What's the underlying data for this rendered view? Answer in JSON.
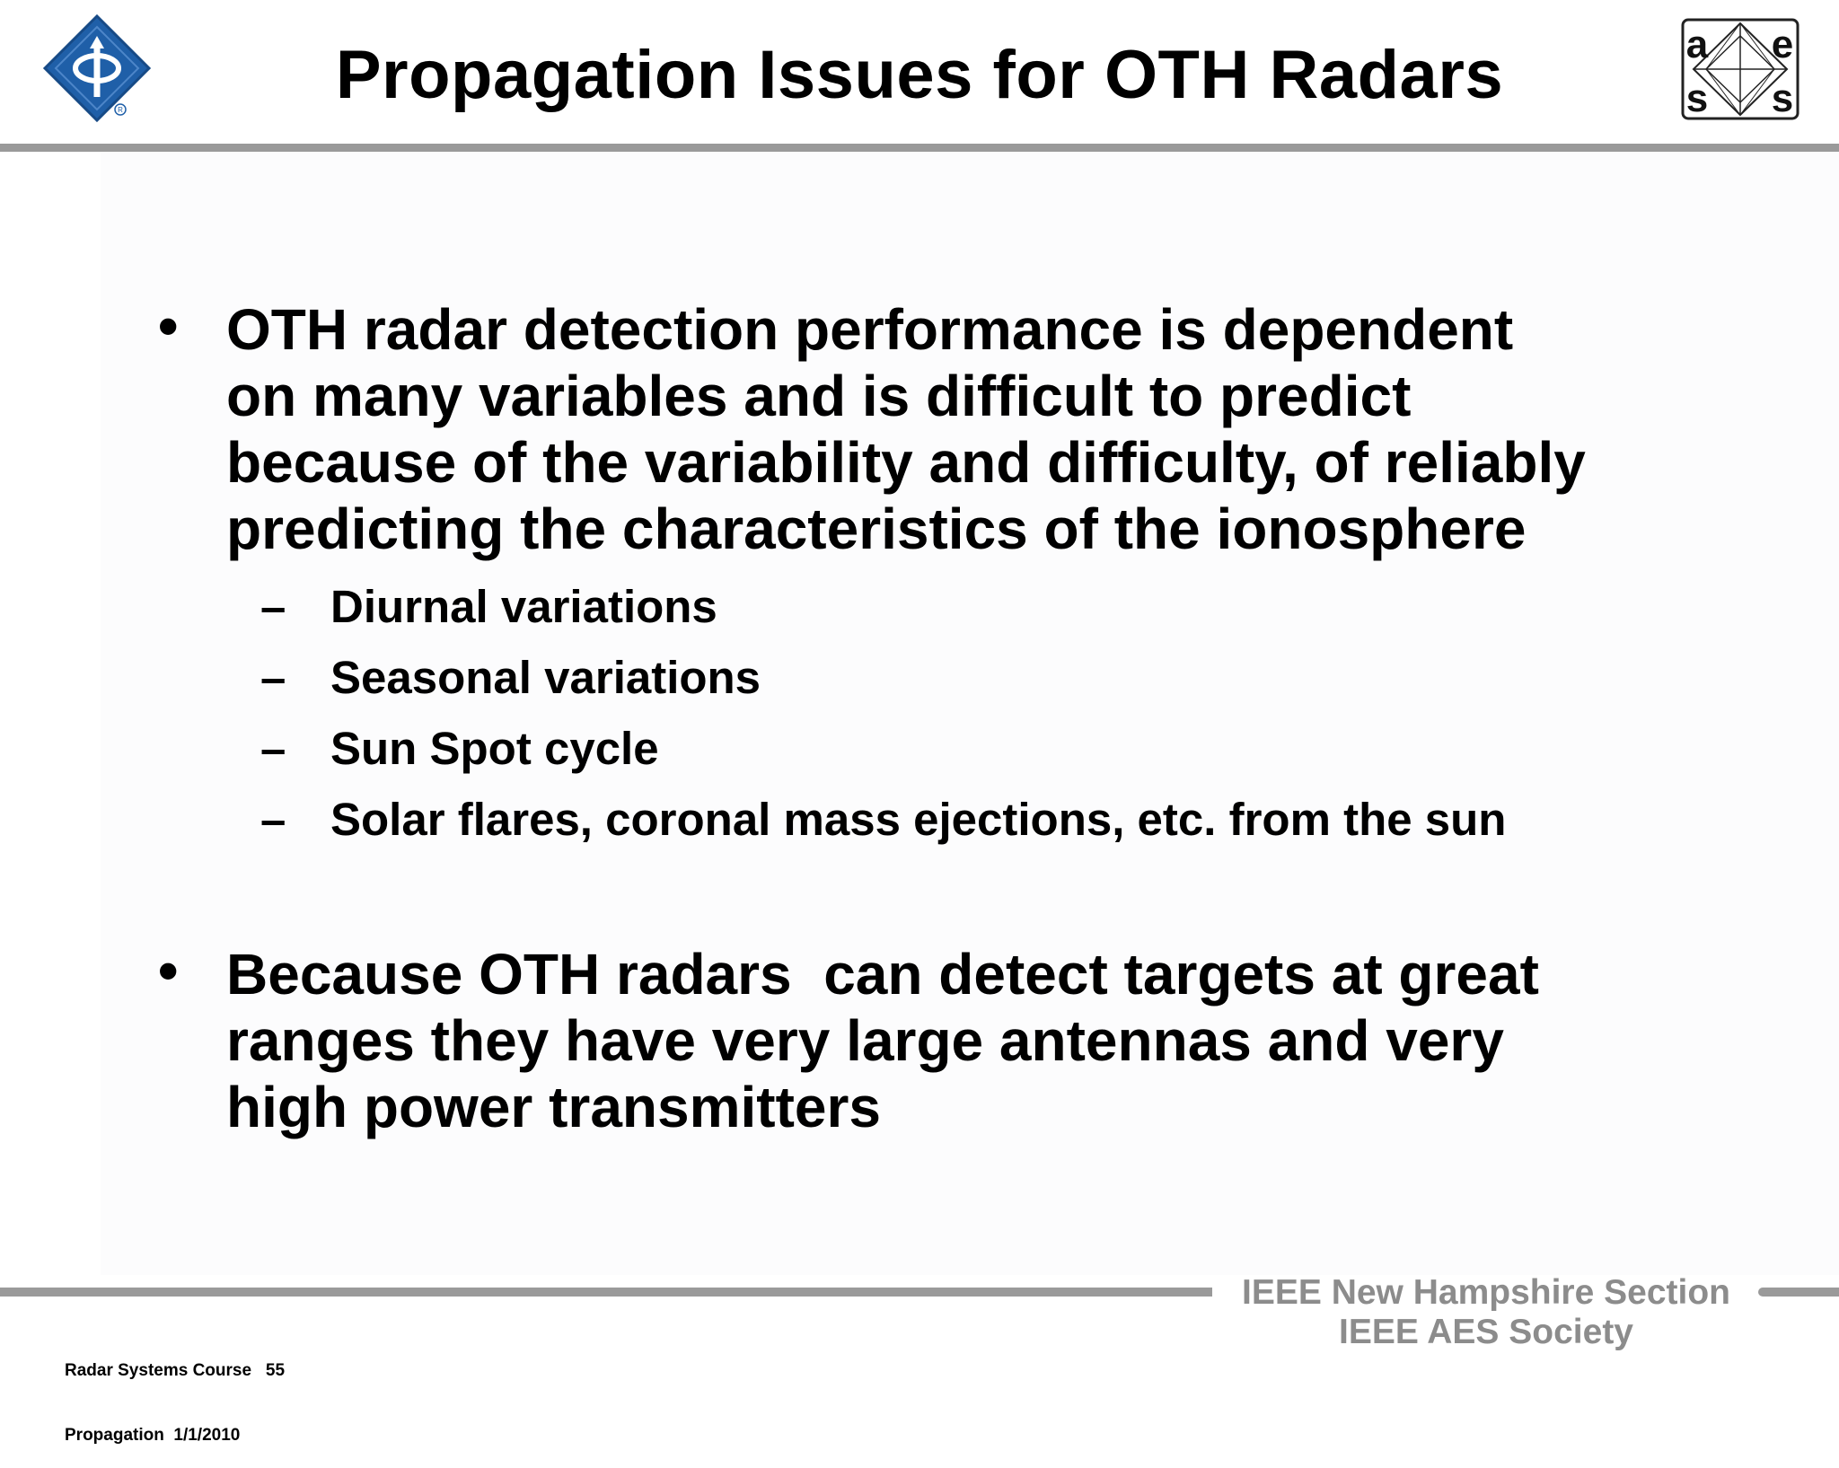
{
  "header": {
    "title": "Propagation Issues for OTH Radars",
    "ieee_logo_icon": "ieee-diamond-logo-icon",
    "aes_logo": {
      "icon": "aes-society-logo-icon",
      "letters": [
        "a",
        "e",
        "s",
        "s"
      ]
    }
  },
  "content": {
    "bullet1": {
      "lines": [
        "OTH radar detection performance is dependent",
        "on many variables and is difficult to predict",
        "because of the variability and difficulty, of reliably",
        "predicting the characteristics of the ionosphere"
      ],
      "subitems": [
        "Diurnal variations",
        "Seasonal variations",
        "Sun Spot cycle",
        "Solar flares, coronal mass ejections, etc. from the sun"
      ]
    },
    "bullet2": {
      "lines": [
        "Because OTH radars  can detect targets at great",
        "ranges they have very large antennas and very",
        "high power transmitters"
      ]
    },
    "bullet_symbol": "•",
    "dash_symbol": "–"
  },
  "footer": {
    "course_line": "Radar Systems Course   55",
    "topic_line": "Propagation  1/1/2010",
    "org_line1": "IEEE New Hampshire Section",
    "org_line2": "IEEE AES Society"
  },
  "colors": {
    "rule": "#9a9a9a",
    "footer_text": "#8c8c8c",
    "ieee_blue": "#1f5fa8"
  }
}
